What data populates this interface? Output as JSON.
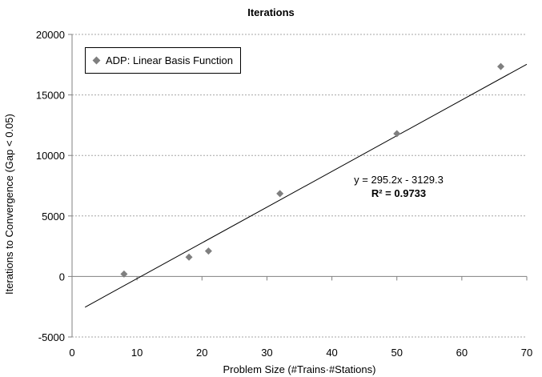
{
  "chart_data": {
    "type": "scatter",
    "title": "Iterations",
    "xlabel": "Problem Size (#Trains·#Stations)",
    "ylabel": "Iterations to Convergence (Gap < 0.05)",
    "xlim": [
      0,
      70
    ],
    "ylim": [
      -5000,
      20000
    ],
    "x_ticks": [
      0,
      10,
      20,
      30,
      40,
      50,
      60,
      70
    ],
    "y_ticks": [
      -5000,
      0,
      5000,
      10000,
      15000,
      20000
    ],
    "x_tick_labels": [
      "0",
      "10",
      "20",
      "30",
      "40",
      "50",
      "60",
      "70"
    ],
    "y_tick_labels": [
      "-5000",
      "0",
      "5000",
      "10000",
      "15000",
      "20000"
    ],
    "grid": "horizontal dashed",
    "legend_position": "top-left",
    "series": [
      {
        "name": "ADP: Linear Basis Function",
        "marker": "diamond",
        "color": "#7f7f7f",
        "points": [
          {
            "x": 8,
            "y": 200
          },
          {
            "x": 18,
            "y": 1600
          },
          {
            "x": 21,
            "y": 2100
          },
          {
            "x": 32,
            "y": 6850
          },
          {
            "x": 50,
            "y": 11800
          },
          {
            "x": 66,
            "y": 17350
          }
        ]
      }
    ],
    "trendline": {
      "slope": 295.2,
      "intercept": -3129.3,
      "x_range": [
        2,
        70
      ],
      "color": "#000000",
      "equation": "y = 295.2x - 3129.3",
      "r_squared": "R² = 0.9733"
    }
  }
}
